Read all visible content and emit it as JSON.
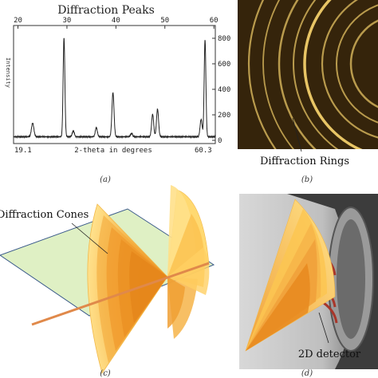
{
  "panel_a": {
    "title": "Diffraction Peaks",
    "top_ticks": [
      "20",
      "30",
      "40",
      "50",
      "60"
    ],
    "right_ticks": [
      "800",
      "600",
      "400",
      "200",
      "0"
    ],
    "left_axis_label": "Intensity",
    "x_start": "19.1",
    "x_end": "60.3",
    "xlabel": "2-theta in degrees",
    "caption": "(a)"
  },
  "panel_b": {
    "label": "Diffraction Rings",
    "caption": "(b)"
  },
  "panel_c": {
    "label": "Diffraction Cones",
    "caption": "(c)"
  },
  "panel_d": {
    "label": "2D detector",
    "caption": "(d)"
  },
  "chart_data": {
    "type": "line",
    "title": "Diffraction Peaks",
    "xlabel": "2-theta in degrees",
    "ylabel": "",
    "xlim": [
      19.1,
      60.3
    ],
    "ylim": [
      0,
      850
    ],
    "baseline": 28,
    "peaks": [
      {
        "x": 23.0,
        "y": 135,
        "w": 0.35
      },
      {
        "x": 29.4,
        "y": 805,
        "w": 0.25
      },
      {
        "x": 31.3,
        "y": 75,
        "w": 0.3
      },
      {
        "x": 36.0,
        "y": 100,
        "w": 0.3
      },
      {
        "x": 39.4,
        "y": 375,
        "w": 0.3
      },
      {
        "x": 43.2,
        "y": 55,
        "w": 0.3
      },
      {
        "x": 47.5,
        "y": 205,
        "w": 0.3
      },
      {
        "x": 48.5,
        "y": 245,
        "w": 0.3
      },
      {
        "x": 57.4,
        "y": 165,
        "w": 0.3
      },
      {
        "x": 58.2,
        "y": 790,
        "w": 0.25
      }
    ]
  },
  "colors": {
    "ring_bg": "#2a1c08",
    "ring": "#f2cf6a",
    "cone_light": "#ffd36a",
    "cone_dark": "#e8902a",
    "plane": "#dff0c4",
    "beam": "#e0894a"
  }
}
